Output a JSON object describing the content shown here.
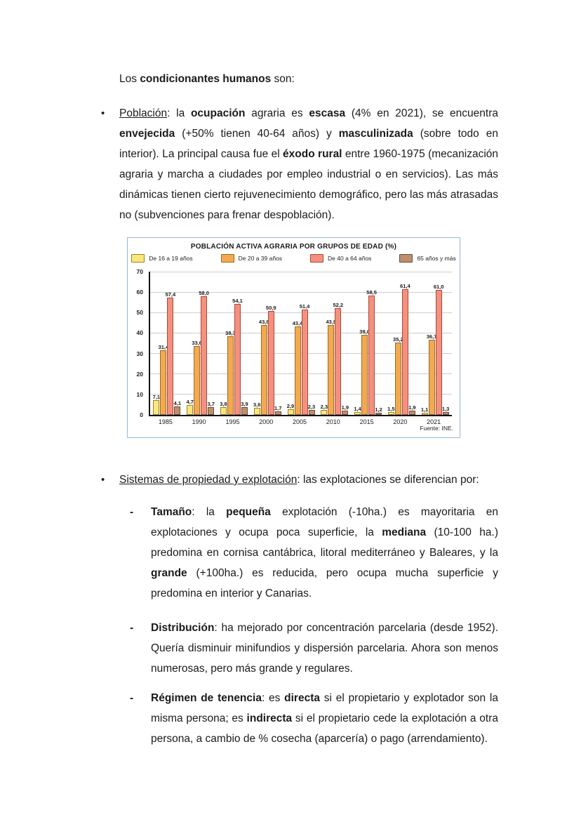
{
  "page": {
    "intro": {
      "segments": [
        {
          "t": "Los "
        },
        {
          "t": "condicionantes humanos",
          "b": true
        },
        {
          "t": " son:"
        }
      ]
    },
    "bullets": [
      {
        "marker": "•",
        "segments": [
          {
            "t": "Población",
            "u": true
          },
          {
            "t": ": la "
          },
          {
            "t": "ocupación",
            "b": true
          },
          {
            "t": " agraria es "
          },
          {
            "t": "escasa",
            "b": true
          },
          {
            "t": " (4% en 2021), se encuentra "
          },
          {
            "t": "envejecida",
            "b": true
          },
          {
            "t": " (+50% tienen 40-64 años) y "
          },
          {
            "t": "masculinizada",
            "b": true
          },
          {
            "t": " (sobre todo en interior). La principal causa fue el "
          },
          {
            "t": "éxodo rural",
            "b": true
          },
          {
            "t": " entre 1960-1975 (mecanización agraria y marcha a ciudades por empleo industrial o en servicios). Las más dinámicas tienen cierto rejuvenecimiento demográfico, pero las más atrasadas no (subvenciones para frenar despoblación)."
          }
        ]
      },
      {
        "marker": "•",
        "segments": [
          {
            "t": "Sistemas de propiedad y explotación",
            "u": true
          },
          {
            "t": ": las explotaciones se diferencian por:"
          }
        ]
      }
    ],
    "subbullets": [
      {
        "marker": "-",
        "segments": [
          {
            "t": "Tamaño",
            "b": true
          },
          {
            "t": ": la "
          },
          {
            "t": "pequeña",
            "b": true
          },
          {
            "t": " explotación (-10ha.) es mayoritaria en explotaciones y ocupa poca superficie, la "
          },
          {
            "t": "mediana",
            "b": true
          },
          {
            "t": " (10-100 ha.) predomina en cornisa cantábrica, litoral mediterráneo y Baleares, y la "
          },
          {
            "t": "grande",
            "b": true
          },
          {
            "t": " (+100ha.) es reducida, pero ocupa mucha superficie y predomina en interior y Canarias."
          }
        ]
      },
      {
        "marker": "-",
        "segments": [
          {
            "t": "Distribución",
            "b": true
          },
          {
            "t": ": ha mejorado por concentración parcelaria (desde 1952). Quería disminuir minifundios y dispersión parcelaria. Ahora son menos numerosas, pero más grande y regulares."
          }
        ]
      },
      {
        "marker": "-",
        "segments": [
          {
            "t": "Régimen de tenencia",
            "b": true
          },
          {
            "t": ": es "
          },
          {
            "t": "directa",
            "b": true
          },
          {
            "t": " si el propietario y explotador son la misma persona; es "
          },
          {
            "t": "indirecta",
            "b": true
          },
          {
            "t": " si el propietario cede la explotación a otra persona, a cambio de % cosecha (aparcería) o pago (arrendamiento)."
          }
        ]
      }
    ]
  },
  "chart_data": {
    "type": "bar",
    "title": "POBLACIÓN ACTIVA AGRARIA POR GRUPOS DE EDAD (%)",
    "source": "Fuente: INE.",
    "categories": [
      "1985",
      "1990",
      "1995",
      "2000",
      "2005",
      "2010",
      "2015",
      "2020",
      "2021"
    ],
    "series": [
      {
        "name": "De 16 a 19 años",
        "color": "#F9E67E",
        "border": "#9B8426",
        "values": [
          7.1,
          4.7,
          3.8,
          3.6,
          2.9,
          2.3,
          1.4,
          1.5,
          1.1
        ]
      },
      {
        "name": "De 20 a 39 años",
        "color": "#F4A950",
        "border": "#9C6A22",
        "values": [
          31.4,
          33.6,
          38.3,
          43.8,
          43.4,
          43.9,
          39.0,
          35.2,
          36.7
        ]
      },
      {
        "name": "De 40 a 64 años",
        "color": "#F4907E",
        "border": "#A84A3B",
        "values": [
          57.4,
          58.0,
          54.1,
          50.9,
          51.4,
          52.2,
          58.5,
          61.4,
          61.0
        ]
      },
      {
        "name": "65 años y más",
        "color": "#BE8F6D",
        "border": "#6B4A2F",
        "values": [
          4.1,
          3.7,
          3.9,
          1.7,
          2.3,
          1.9,
          1.2,
          1.9,
          1.3
        ]
      }
    ],
    "xlabel": "",
    "ylabel": "",
    "ylim": [
      0,
      70
    ],
    "ytick": 10,
    "grid": true,
    "legend_position": "top",
    "value_labels": true,
    "decimal_separator": ","
  },
  "colors": {
    "chart_border": "#8FBCDB",
    "gridline": "#CDCDCD",
    "axis": "#111111"
  }
}
